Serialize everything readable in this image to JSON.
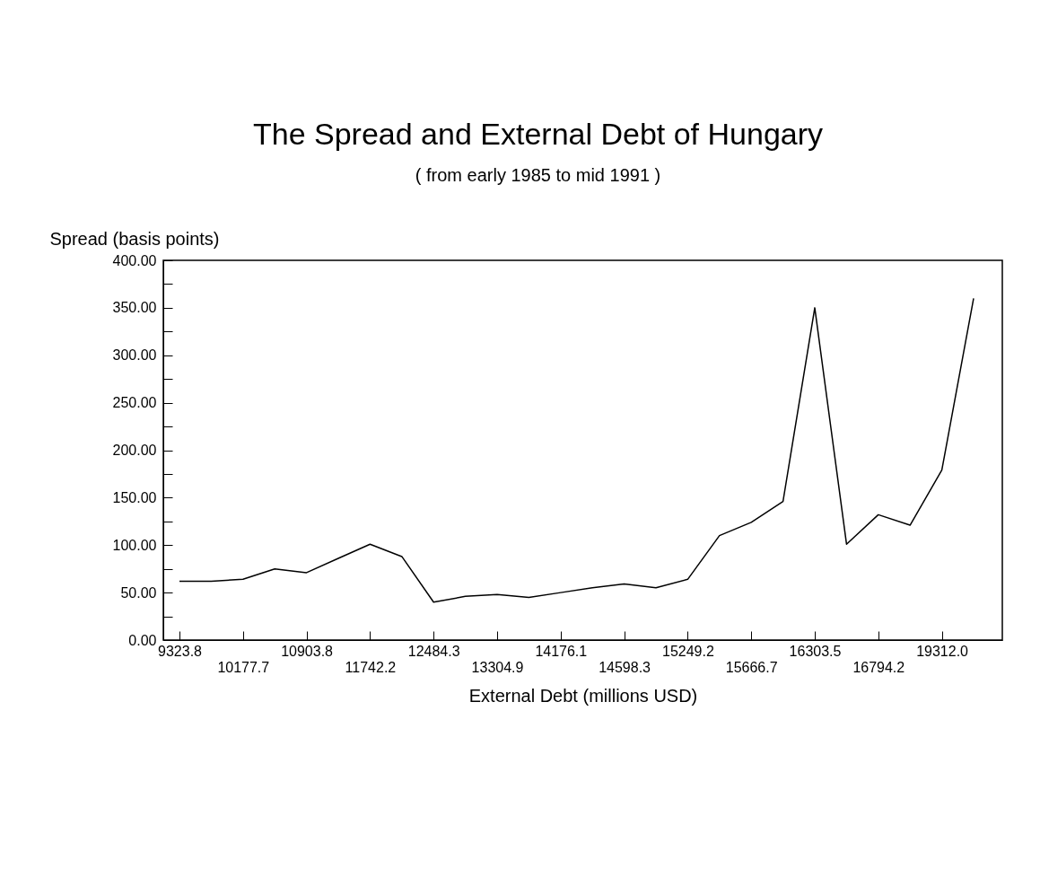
{
  "chart_data": {
    "type": "line",
    "title": "The Spread and External Debt of Hungary",
    "subtitle": "( from early 1985 to mid 1991 )",
    "xlabel": "External Debt (millions USD)",
    "ylabel": "Spread (basis points)",
    "categories": [
      "9323.8",
      null,
      "10177.7",
      null,
      "10903.8",
      null,
      "11742.2",
      null,
      "12484.3",
      null,
      "13304.9",
      null,
      "14176.1",
      null,
      "14598.3",
      null,
      "15249.2",
      null,
      "15666.7",
      null,
      "16303.5",
      null,
      "16794.2",
      null,
      "19312.0",
      null
    ],
    "series": [
      {
        "color": "#000000",
        "values": [
          62,
          62,
          64,
          75,
          71,
          86,
          101,
          88,
          40,
          46,
          48,
          45,
          50,
          55,
          59,
          55,
          64,
          110,
          124,
          146,
          350,
          101,
          132,
          121,
          179,
          360
        ]
      }
    ],
    "ylim": [
      0,
      400
    ],
    "yticks": [
      {
        "value": 0,
        "label": "0.00"
      },
      {
        "value": 25,
        "label": null
      },
      {
        "value": 50,
        "label": "50.00"
      },
      {
        "value": 75,
        "label": null
      },
      {
        "value": 100,
        "label": "100.00"
      },
      {
        "value": 125,
        "label": null
      },
      {
        "value": 150,
        "label": "150.00"
      },
      {
        "value": 175,
        "label": null
      },
      {
        "value": 200,
        "label": "200.00"
      },
      {
        "value": 225,
        "label": null
      },
      {
        "value": 250,
        "label": "250.00"
      },
      {
        "value": 275,
        "label": null
      },
      {
        "value": 300,
        "label": "300.00"
      },
      {
        "value": 325,
        "label": null
      },
      {
        "value": 350,
        "label": "350.00"
      },
      {
        "value": 375,
        "label": null
      },
      {
        "value": 400,
        "label": "400.00"
      }
    ],
    "grid": false,
    "marker": "none",
    "line_style": "solid"
  }
}
